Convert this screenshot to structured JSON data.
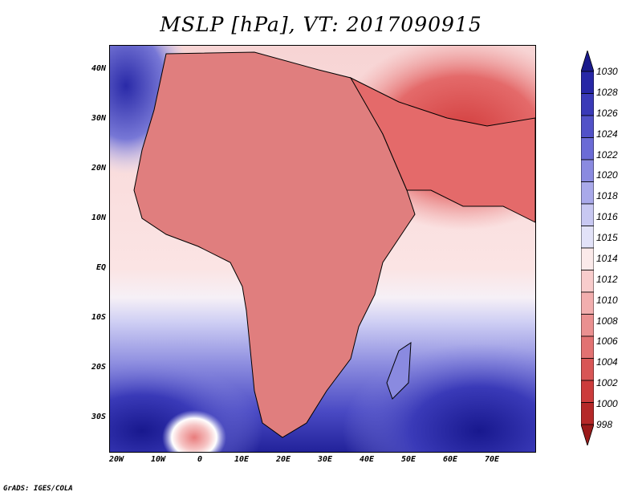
{
  "title": "MSLP [hPa], VT: 2017090915",
  "credit": "GrADS: IGES/COLA",
  "lat_labels": [
    "40N",
    "30N",
    "20N",
    "10N",
    "EQ",
    "10S",
    "20S",
    "30S"
  ],
  "lon_labels": [
    "20W",
    "10W",
    "0",
    "10E",
    "20E",
    "30E",
    "40E",
    "50E",
    "60E",
    "70E"
  ],
  "colorbar": {
    "labels": [
      "1030",
      "1028",
      "1026",
      "1024",
      "1022",
      "1020",
      "1018",
      "1016",
      "1015",
      "1014",
      "1012",
      "1010",
      "1008",
      "1006",
      "1004",
      "1002",
      "1000",
      "998"
    ],
    "colors": [
      "#1a1a8c",
      "#2727a6",
      "#3a3ab8",
      "#5252c8",
      "#6b6bd6",
      "#8a8ae0",
      "#a9a9ea",
      "#c8c8f2",
      "#e2e2f8",
      "#fbeaea",
      "#f8cccc",
      "#f2aeae",
      "#ea9090",
      "#e27272",
      "#d85656",
      "#cc3c3c",
      "#b52828",
      "#9a1a1a"
    ]
  }
}
